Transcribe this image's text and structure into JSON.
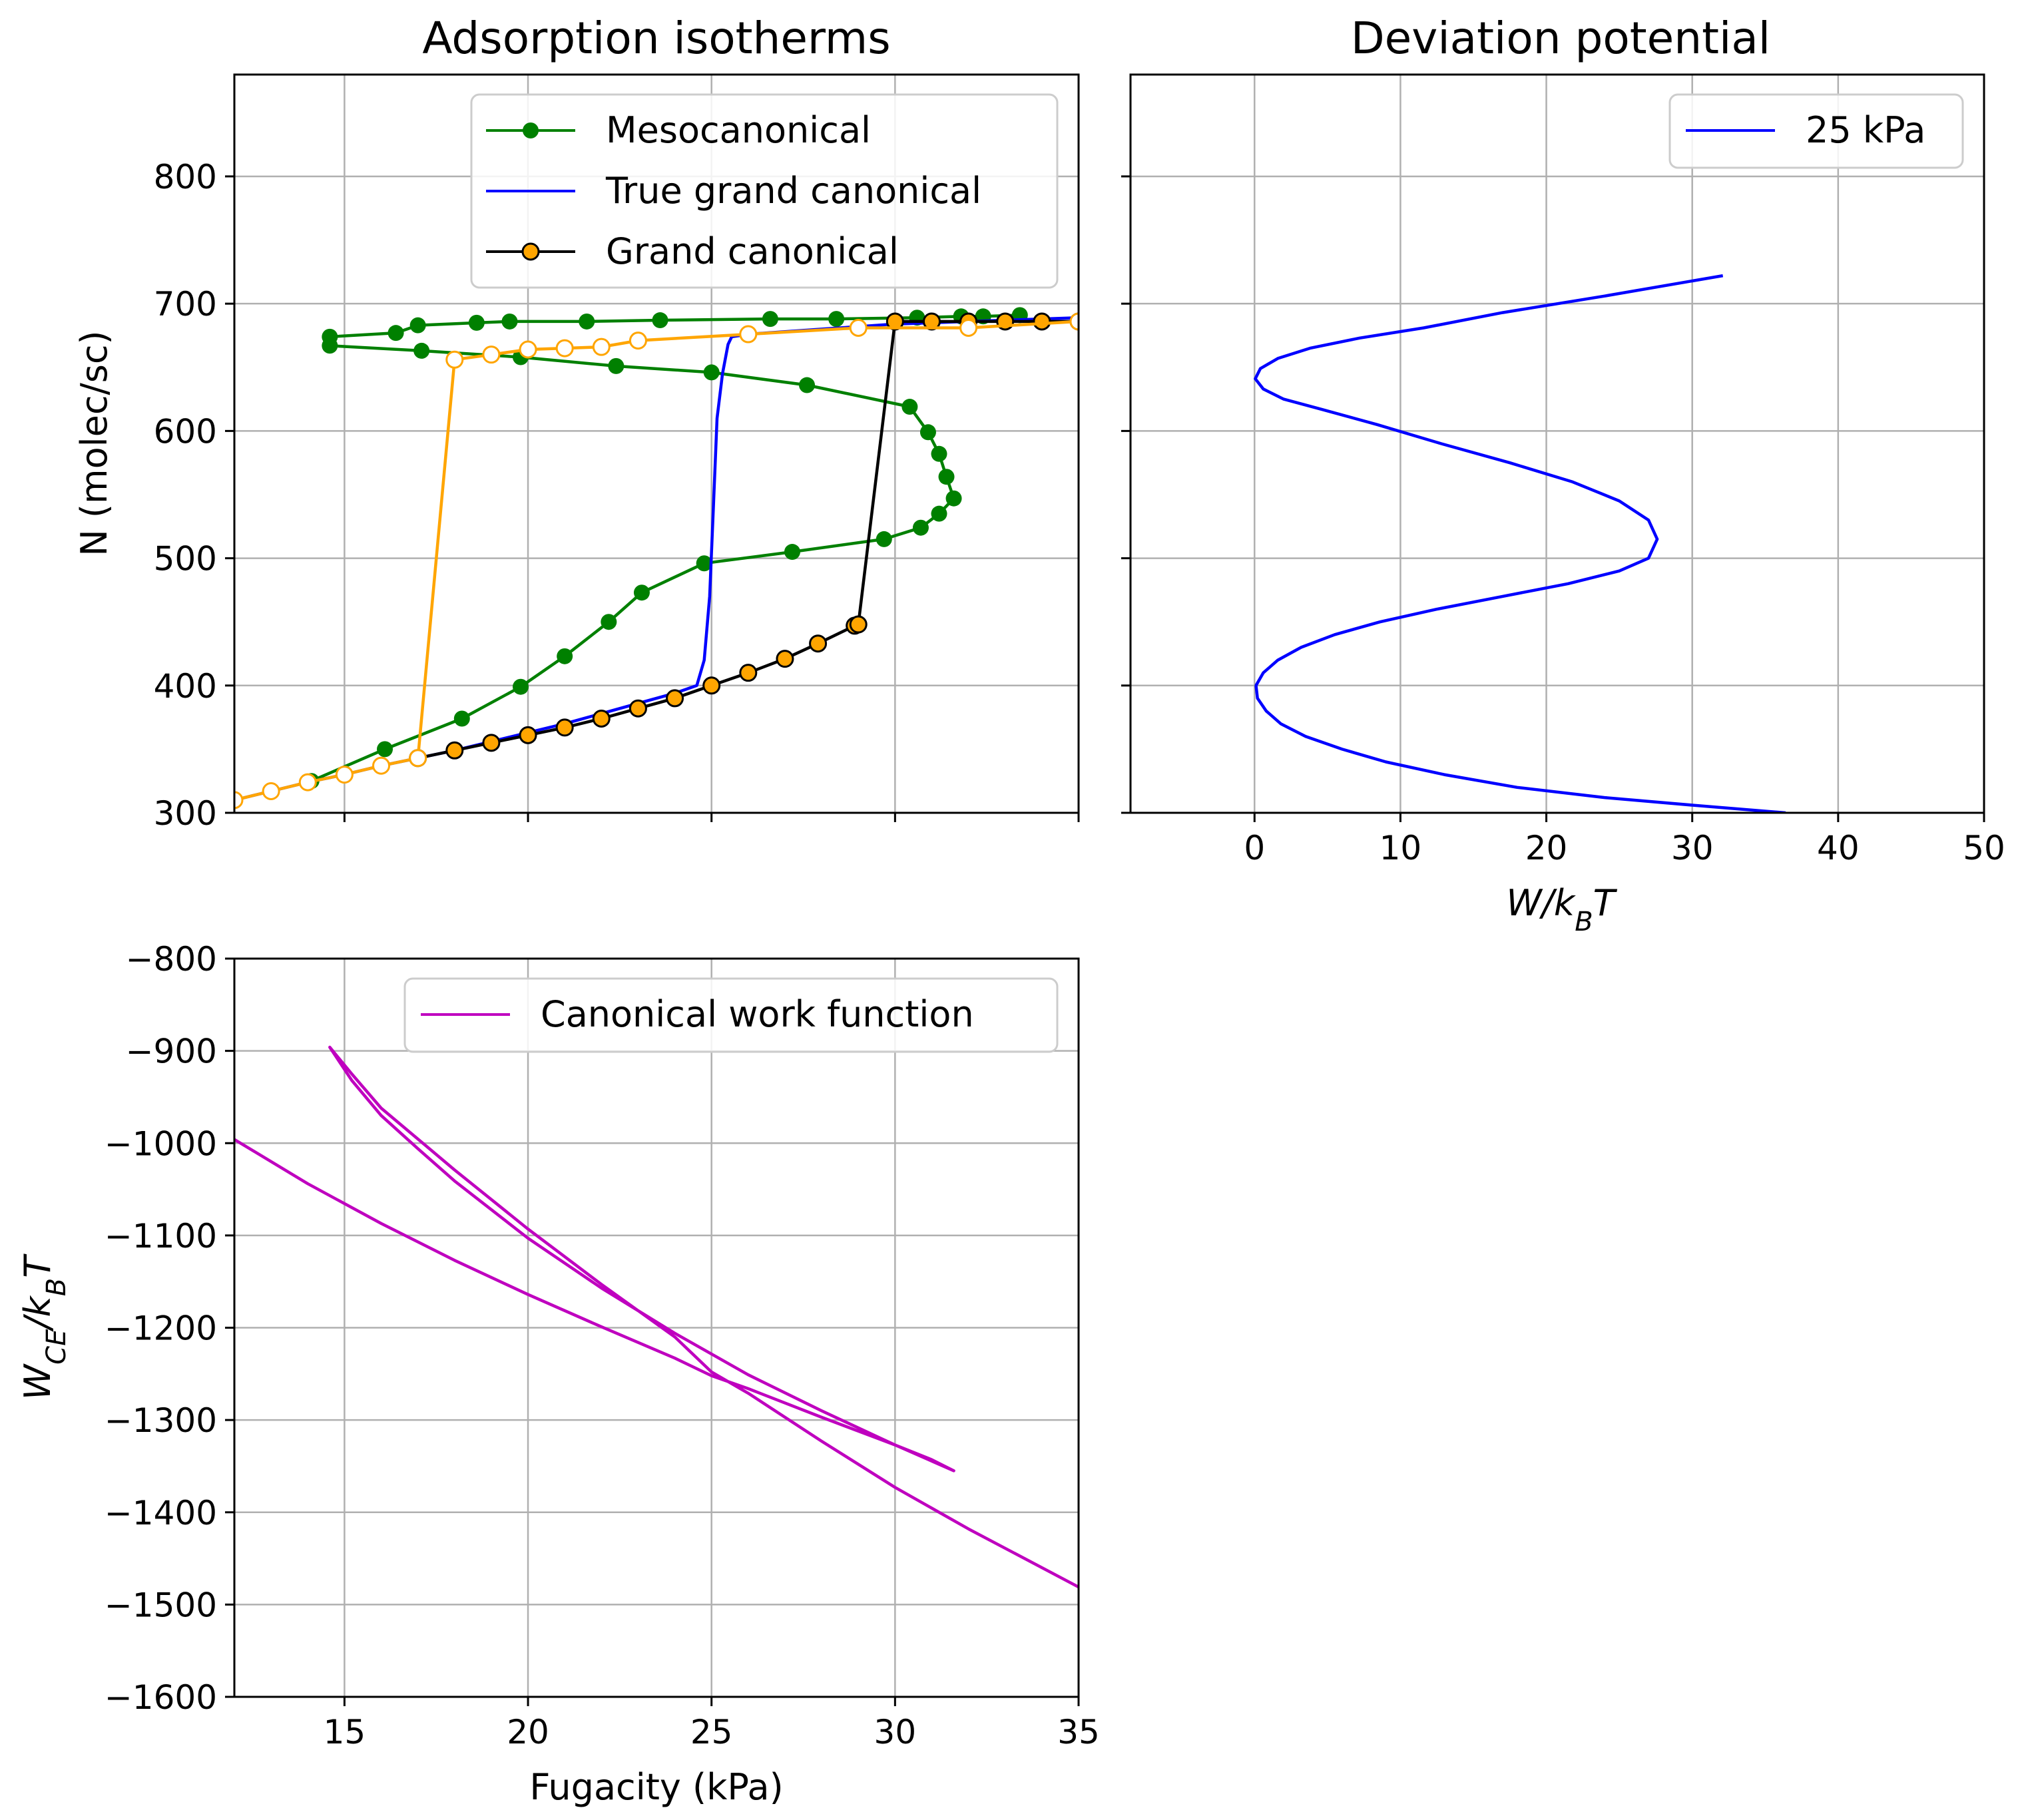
{
  "chart_data": [
    {
      "id": "isotherms",
      "type": "line",
      "title": "Adsorption isotherms",
      "xlabel": "",
      "ylabel": "N (molec/sc)",
      "xlim": [
        12,
        35
      ],
      "ylim": [
        300,
        880
      ],
      "xticks": [
        15,
        20,
        25,
        30,
        35
      ],
      "xtick_labels_shown": false,
      "yticks": [
        300,
        400,
        500,
        600,
        700,
        800
      ],
      "grid": true,
      "legend": "top-right",
      "legend_order": [
        "meso",
        "true",
        "gc"
      ],
      "series": [
        {
          "key": "meso",
          "name": "Mesocanonical",
          "color": "#008000",
          "marker": "filled-circle",
          "x": [
            14.1,
            16.1,
            18.2,
            19.8,
            21.0,
            22.2,
            23.1,
            24.8,
            27.2,
            29.7,
            30.7,
            31.2,
            31.6,
            31.4,
            31.2,
            30.9,
            30.4,
            27.6,
            25.0,
            22.4,
            19.8,
            17.1,
            14.6,
            14.6,
            16.4,
            17.0,
            18.6,
            19.5,
            21.6,
            23.6,
            26.6,
            28.4,
            30.6,
            31.8,
            32.4,
            33.4
          ],
          "y": [
            325,
            350,
            374,
            399,
            423,
            450,
            473,
            496,
            505,
            515,
            524,
            535,
            547,
            564,
            582,
            599,
            619,
            636,
            646,
            651,
            658,
            663,
            667,
            674,
            677,
            683,
            685,
            686,
            686,
            687,
            688,
            688,
            689,
            690,
            690,
            691
          ]
        },
        {
          "key": "true",
          "name": "True grand canonical",
          "color": "#0000ff",
          "marker": "none",
          "x": [
            12.0,
            13.0,
            14.0,
            15.0,
            16.0,
            17.0,
            18.0,
            19.0,
            20.0,
            21.0,
            22.0,
            23.0,
            24.0,
            24.6,
            24.8,
            24.95,
            25.05,
            25.15,
            25.3,
            25.45,
            25.55,
            26.0,
            27.0,
            28.0,
            29.0,
            30.0,
            31.0,
            32.0,
            33.0,
            34.0,
            35.0
          ],
          "y": [
            310,
            317,
            324,
            330,
            337,
            343,
            349,
            356,
            363,
            370,
            378,
            386,
            394,
            400,
            420,
            470,
            540,
            610,
            645,
            668,
            674,
            676,
            678,
            680,
            682,
            684,
            685,
            686,
            687,
            688,
            689
          ]
        },
        {
          "key": "gc",
          "name": "Grand canonical",
          "color": "#000000",
          "marker": "circle-orange-fill",
          "x": [
            17.0,
            18.0,
            19.0,
            20.0,
            21.0,
            22.0,
            23.0,
            24.0,
            25.0,
            26.0,
            27.0,
            27.9,
            28.9,
            29.0,
            30.0,
            31.0,
            32.0,
            33.0,
            34.0,
            35.0
          ],
          "y": [
            343,
            349,
            355,
            361,
            367,
            374,
            382,
            390,
            400,
            410,
            421,
            433,
            447,
            448,
            686,
            686,
            686,
            686,
            686,
            686
          ]
        },
        {
          "key": "gc_reverse",
          "name": "",
          "color": "#ffa500",
          "marker": "circle-white-fill",
          "x": [
            12.0,
            13.0,
            14.0,
            15.0,
            16.0,
            17.0,
            18.0,
            19.0,
            20.0,
            21.0,
            22.0,
            23.0,
            26.0,
            29.0,
            32.0,
            35.0
          ],
          "y": [
            310,
            317,
            324,
            330,
            337,
            343,
            656,
            660,
            664,
            665,
            666,
            671,
            676,
            681,
            681,
            686
          ]
        }
      ]
    },
    {
      "id": "deviation",
      "type": "line",
      "title": "Deviation potential",
      "xlabel": "W/k_BT",
      "ylabel": "",
      "xlim": [
        -8.5,
        50
      ],
      "ylim": [
        300,
        880
      ],
      "xticks": [
        0,
        10,
        20,
        30,
        40,
        50
      ],
      "yticks": [
        300,
        400,
        500,
        600,
        700,
        800
      ],
      "ytick_labels_shown": false,
      "grid": true,
      "legend": "top-right",
      "series": [
        {
          "name": "25 kPa",
          "color": "#0000ff",
          "x": [
            36.4,
            30.0,
            24.0,
            18.0,
            13.0,
            9.0,
            6.0,
            3.5,
            1.8,
            0.8,
            0.2,
            0.1,
            0.6,
            1.6,
            3.2,
            5.5,
            8.6,
            12.5,
            17.0,
            21.5,
            25.0,
            27.0,
            27.6,
            27.0,
            25.0,
            21.8,
            17.5,
            12.8,
            8.4,
            4.6,
            2.0,
            0.6,
            0.05,
            0.4,
            1.6,
            3.8,
            7.2,
            11.6,
            17.0,
            24.0,
            32.1
          ],
          "y": [
            300,
            306,
            312,
            320,
            330,
            340,
            350,
            360,
            370,
            380,
            390,
            400,
            410,
            420,
            430,
            440,
            450,
            460,
            470,
            480,
            490,
            500,
            515,
            530,
            545,
            560,
            575,
            590,
            605,
            617,
            625,
            633,
            641,
            649,
            657,
            665,
            673,
            681,
            693,
            706,
            722
          ]
        }
      ]
    },
    {
      "id": "work",
      "type": "line",
      "title": "",
      "xlabel": "Fugacity (kPa)",
      "ylabel": "W_CE/k_BT",
      "xlim": [
        12,
        35
      ],
      "ylim": [
        -1600,
        -800
      ],
      "xticks": [
        15,
        20,
        25,
        30,
        35
      ],
      "yticks": [
        -1600,
        -1500,
        -1400,
        -1300,
        -1200,
        -1100,
        -1000,
        -900,
        -800
      ],
      "grid": true,
      "legend": "top-right",
      "series": [
        {
          "name": "Canonical work function",
          "color": "#bf00bf",
          "x": [
            12.0,
            14.0,
            16.0,
            18.0,
            20.0,
            22.0,
            24.0,
            25.0,
            26.0,
            28.0,
            30.0,
            31.6,
            31.0,
            30.0,
            28.0,
            26.0,
            24.0,
            22.0,
            20.0,
            18.0,
            17.0,
            16.0,
            15.2,
            14.6,
            15.2,
            16.0,
            18.0,
            20.0,
            22.0,
            24.0,
            25.0,
            26.0,
            28.0,
            30.0,
            32.0,
            35.0
          ],
          "y": [
            -996,
            -1044,
            -1087,
            -1127,
            -1164,
            -1199,
            -1233,
            -1252,
            -1266,
            -1297,
            -1327,
            -1355,
            -1343,
            -1327,
            -1290,
            -1251,
            -1206,
            -1157,
            -1103,
            -1041,
            -1006,
            -970,
            -932,
            -896,
            -925,
            -962,
            -1029,
            -1093,
            -1153,
            -1210,
            -1248,
            -1271,
            -1323,
            -1373,
            -1418,
            -1481
          ]
        }
      ]
    }
  ]
}
